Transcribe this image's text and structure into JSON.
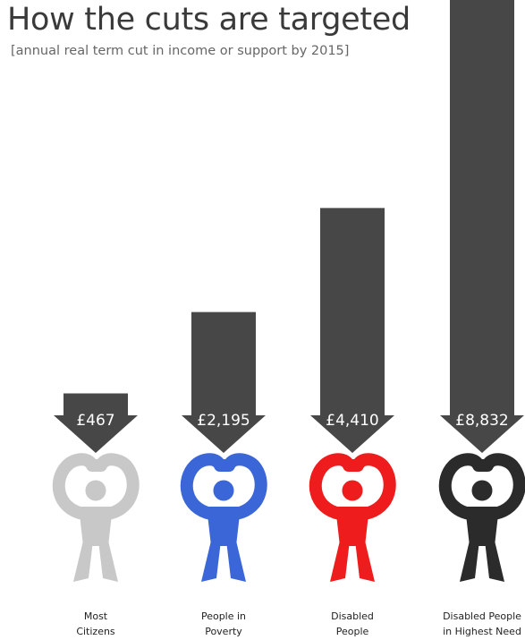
{
  "title": "How the cuts are targeted",
  "subtitle": "[annual real term cut in income or support by 2015]",
  "colors": {
    "bar": "#474747",
    "text": "#3a3a3a",
    "figure_most_citizens": "#c8c8c8",
    "figure_poverty": "#3a66d8",
    "figure_disabled": "#ee1c1c",
    "figure_highest_need": "#2b2b2b"
  },
  "chart_data": {
    "type": "bar",
    "title": "How the cuts are targeted",
    "subtitle": "[annual real term cut in income or support by 2015]",
    "categories": [
      "Most Citizens",
      "People in Poverty",
      "Disabled People",
      "Disabled People in Highest Need"
    ],
    "category_lines": [
      [
        "Most",
        "Citizens"
      ],
      [
        "People in",
        "Poverty"
      ],
      [
        "Disabled",
        "People"
      ],
      [
        "Disabled People",
        "in Highest Need"
      ]
    ],
    "values": [
      467,
      2195,
      4410,
      8832
    ],
    "value_labels": [
      "£467",
      "£2,195",
      "£4,410",
      "£8,832"
    ],
    "figure_colors": [
      "#c8c8c8",
      "#3a66d8",
      "#ee1c1c",
      "#2b2b2b"
    ],
    "icons": [
      "person-arms-up-icon",
      "person-arms-up-icon",
      "person-arms-up-icon",
      "person-arms-up-icon"
    ],
    "xlabel": "",
    "ylabel": "",
    "ylim": [
      0,
      8832
    ],
    "grid": false,
    "legend": "none"
  }
}
